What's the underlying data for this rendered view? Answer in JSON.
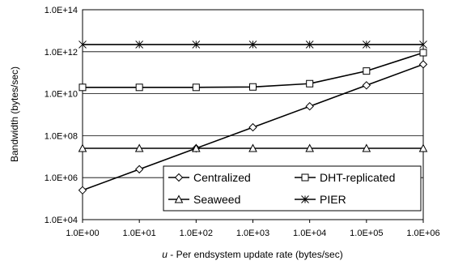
{
  "chart_data": {
    "type": "line",
    "title": "",
    "xlabel_var": "u",
    "xlabel_rest": " - Per endsystem update rate (bytes/sec)",
    "ylabel": "Bandwidth (bytes/sec)",
    "x_scale": "log",
    "y_scale": "log",
    "xlim": [
      1,
      1000000
    ],
    "ylim": [
      10000,
      100000000000000
    ],
    "grid": "horizontal major",
    "x": [
      1,
      10,
      100,
      1000,
      10000,
      100000,
      1000000
    ],
    "x_tick_labels": [
      "1.0E+00",
      "1.0E+01",
      "1.0E+02",
      "1.0E+03",
      "1.0E+04",
      "1.0E+05",
      "1.0E+06"
    ],
    "y_tick_values": [
      10000,
      1000000,
      100000000,
      10000000000,
      1000000000000,
      100000000000000
    ],
    "y_tick_labels": [
      "1.0E+04",
      "1.0E+06",
      "1.0E+08",
      "1.0E+10",
      "1.0E+12",
      "1.0E+14"
    ],
    "series": [
      {
        "name": "Centralized",
        "marker": "diamond",
        "values": [
          250000,
          2500000,
          25000000,
          250000000,
          2500000000,
          25000000000,
          250000000000
        ]
      },
      {
        "name": "DHT-replicated",
        "marker": "square",
        "values": [
          20000000000,
          20000000000,
          20000000000,
          21000000000,
          30000000000,
          120000000000,
          900000000000
        ]
      },
      {
        "name": "Seaweed",
        "marker": "triangle",
        "values": [
          25000000,
          25000000,
          25000000,
          25000000,
          25000000,
          25000000,
          25000000
        ]
      },
      {
        "name": "PIER",
        "marker": "star",
        "values": [
          2200000000000,
          2200000000000,
          2200000000000,
          2200000000000,
          2200000000000,
          2200000000000,
          2200000000000
        ]
      }
    ],
    "legend": {
      "placement": "bottom-right",
      "columns": 2
    }
  }
}
